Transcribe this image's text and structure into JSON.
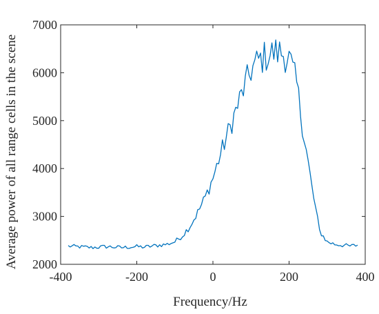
{
  "chart_data": {
    "type": "line",
    "title": "",
    "xlabel": "Frequency/Hz",
    "ylabel": "Average power of all range cells in the scene",
    "xlim": [
      -400,
      400
    ],
    "ylim": [
      2000,
      7000
    ],
    "xticks": [
      -400,
      -200,
      0,
      200,
      400
    ],
    "yticks": [
      2000,
      3000,
      4000,
      5000,
      6000,
      7000
    ],
    "xtick_labels": [
      "-400",
      "-200",
      "0",
      "200",
      "400"
    ],
    "ytick_labels": [
      "2000",
      "3000",
      "4000",
      "5000",
      "6000",
      "7000"
    ],
    "grid": false,
    "legend": "none",
    "series": [
      {
        "color": "#0072BD",
        "x": [
          -380,
          -360,
          -340,
          -320,
          -300,
          -280,
          -260,
          -240,
          -220,
          -200,
          -180,
          -160,
          -140,
          -120,
          -100,
          -80,
          -60,
          -40,
          -20,
          0,
          20,
          40,
          60,
          80,
          100,
          120,
          140,
          160,
          180,
          200,
          220,
          240,
          260,
          280,
          300,
          320,
          340,
          360,
          380
        ],
        "y": [
          2380,
          2370,
          2360,
          2350,
          2360,
          2370,
          2360,
          2350,
          2360,
          2370,
          2360,
          2380,
          2400,
          2420,
          2470,
          2600,
          2800,
          3080,
          3400,
          3800,
          4300,
          4750,
          5200,
          5650,
          6050,
          6250,
          6350,
          6420,
          6420,
          6300,
          5750,
          4650,
          3600,
          2700,
          2470,
          2420,
          2400,
          2380,
          2400
        ]
      }
    ]
  }
}
